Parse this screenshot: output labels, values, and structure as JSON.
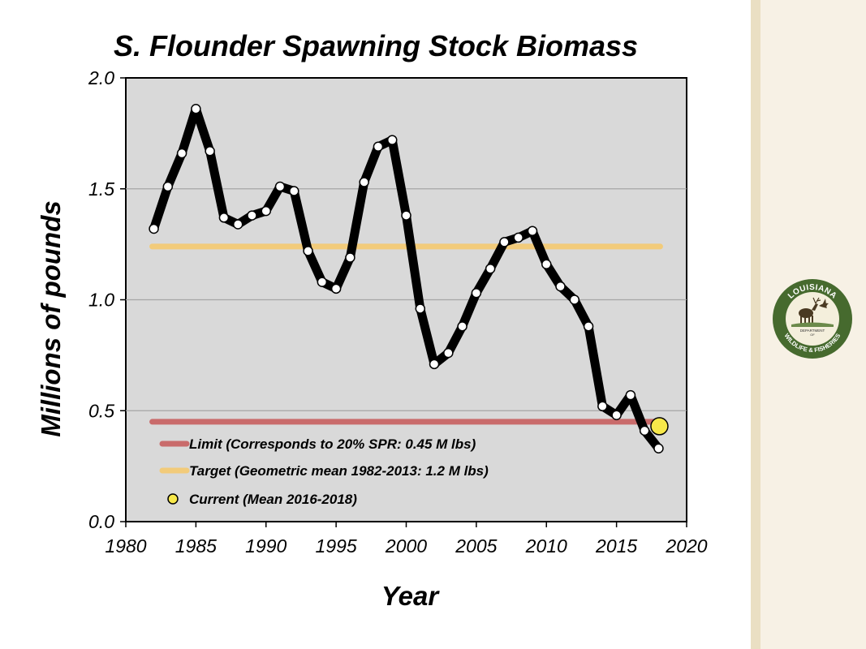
{
  "chart_data": {
    "type": "line",
    "title": "S. Flounder Spawning Stock Biomass",
    "xlabel": "Year",
    "ylabel": "Millions of pounds",
    "xlim": [
      1980,
      2020
    ],
    "ylim": [
      0.0,
      2.0
    ],
    "x_ticks": [
      "1980",
      "1985",
      "1990",
      "1995",
      "2000",
      "2005",
      "2010",
      "2015",
      "2020"
    ],
    "y_ticks": [
      "0.0",
      "0.5",
      "1.0",
      "1.5",
      "2.0"
    ],
    "grid": "horizontal",
    "colors": {
      "plot_background": "#d9d9d9",
      "series_line": "#000000",
      "marker_fill": "#ffffff",
      "limit": "#c96b6b",
      "target": "#f2cb7a",
      "current": "#f7e84a"
    },
    "series": [
      {
        "x": [
          1982,
          1983,
          1984,
          1985,
          1986,
          1987,
          1988,
          1989,
          1990,
          1991,
          1992,
          1993,
          1994,
          1995,
          1996,
          1997,
          1998,
          1999,
          2000,
          2001,
          2002,
          2003,
          2004,
          2005,
          2006,
          2007,
          2008,
          2009,
          2010,
          2011,
          2012,
          2013,
          2014,
          2015,
          2016,
          2017,
          2018
        ],
        "values": [
          1.32,
          1.51,
          1.66,
          1.86,
          1.67,
          1.37,
          1.34,
          1.38,
          1.4,
          1.51,
          1.49,
          1.22,
          1.08,
          1.05,
          1.19,
          1.53,
          1.69,
          1.72,
          1.38,
          0.96,
          0.71,
          0.76,
          0.88,
          1.03,
          1.14,
          1.26,
          1.28,
          1.31,
          1.16,
          1.06,
          1.0,
          0.88,
          0.52,
          0.48,
          0.57,
          0.41,
          0.33
        ]
      }
    ],
    "reference_lines": [
      {
        "name": "Limit",
        "y": 0.45,
        "x_range": [
          1982,
          2018
        ]
      },
      {
        "name": "Target",
        "y": 1.24,
        "x_range": [
          1982,
          2018
        ]
      }
    ],
    "current_point": {
      "x": 2018,
      "y": 0.43
    },
    "legend": {
      "placement": "bottom-left",
      "items": [
        {
          "key": "limit",
          "label": "Limit (Corresponds to 20% SPR: 0.45 M lbs)"
        },
        {
          "key": "target",
          "label": "Target (Geometric mean 1982-2013: 1.2 M lbs)"
        },
        {
          "key": "current",
          "label": "Current (Mean 2016-2018)"
        }
      ]
    }
  },
  "logo": {
    "top_text": "LOUISIANA",
    "middle_text_1": "DEPARTMENT",
    "middle_text_2": "OF",
    "bottom_text": "WILDLIFE & FISHERIES"
  }
}
